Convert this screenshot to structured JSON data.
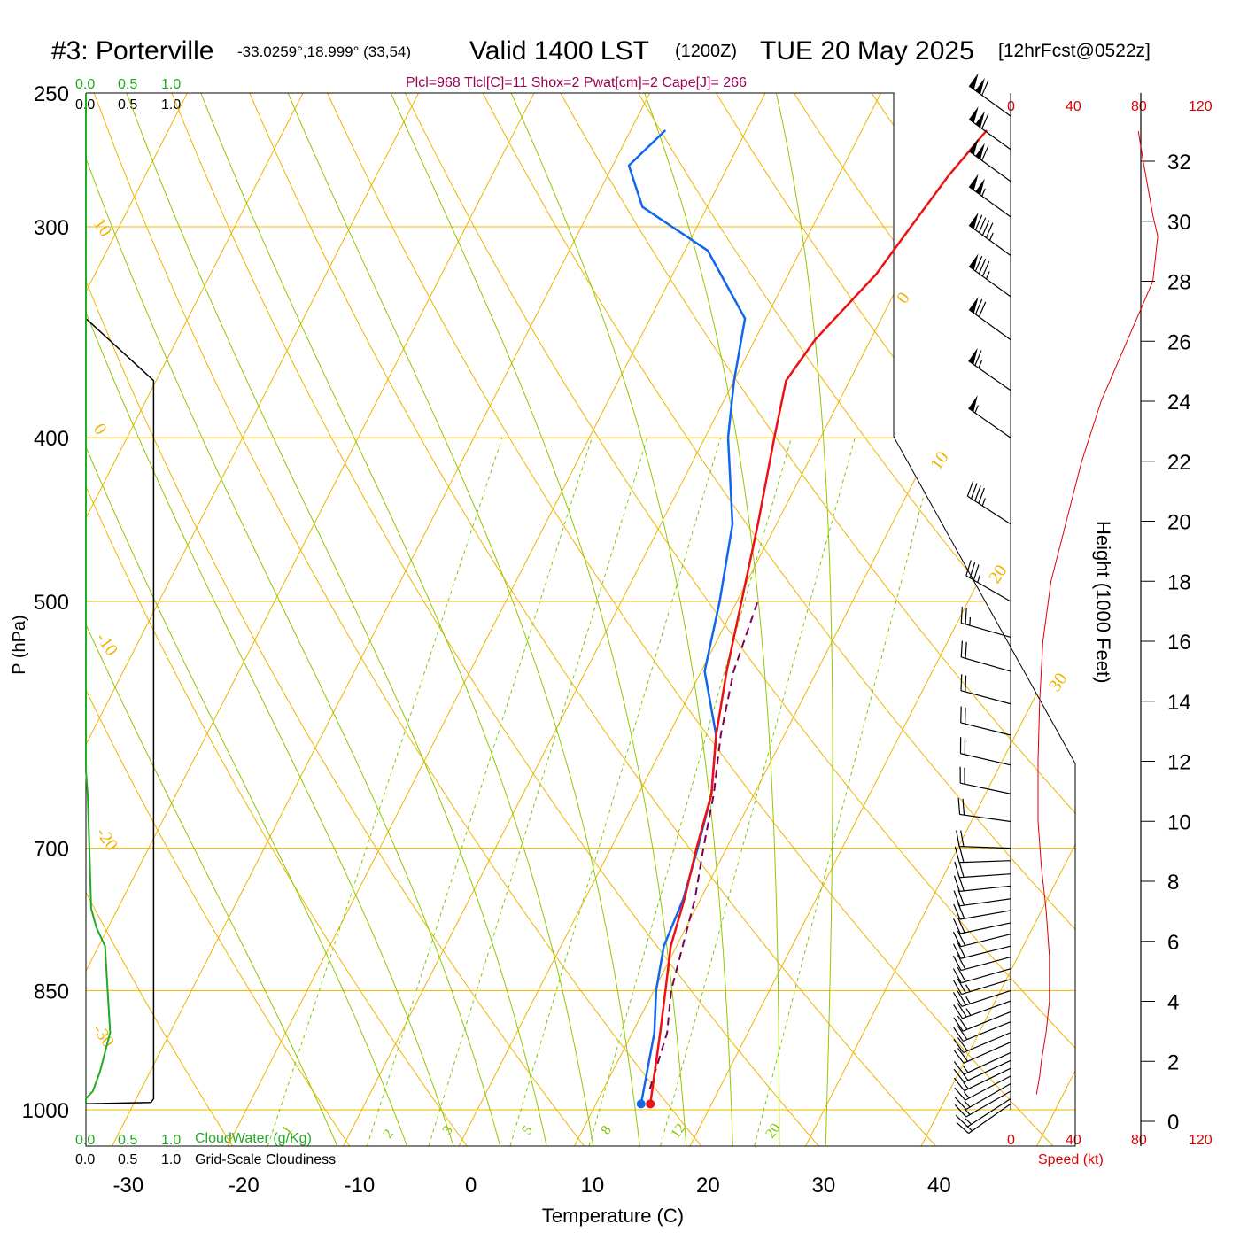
{
  "header": {
    "station": "#3: Porterville",
    "coords": "-33.0259°,18.999° (33,54)",
    "valid": "Valid 1400 LST",
    "utc": "(1200Z)",
    "date": "TUE 20 May 2025",
    "forecast": "[12hrFcst@0522z]",
    "indices": "Plcl=968 Tlcl[C]=11 Shox=2 Pwat[cm]=2 Cape[J]= 266"
  },
  "colors": {
    "isotherm": "#f0b400",
    "mixing": "#7ec800",
    "moist_adiabat": "#90c800",
    "temperature": "#ee1111",
    "dewpoint": "#1166ee",
    "parcel": "#7a0050",
    "cloudwater": "#22aa22",
    "speed": "#dd0000",
    "indices": "#990055"
  },
  "cloud_axis": {
    "green_ticks": [
      "0.0",
      "0.5",
      "1.0"
    ],
    "black_ticks": [
      "0.0",
      "0.5",
      "1.0"
    ],
    "cloudwater_label": "CloudWater (g/Kg)",
    "cloudiness_label": "Grid-Scale Cloudiness"
  },
  "speed_axis": {
    "ticks": [
      "0",
      "40",
      "80",
      "120"
    ],
    "label": "Speed (kt)"
  },
  "height_axis": {
    "label": "Height (1000 Feet)"
  },
  "chart_data": {
    "type": "line",
    "title": "#3: Porterville",
    "xlabel": "Temperature (C)",
    "ylabel": "P (hPa)",
    "x_ticks": [
      -30,
      -20,
      -10,
      0,
      10,
      20,
      30,
      40
    ],
    "p_ticks": [
      250,
      300,
      400,
      500,
      700,
      850,
      1000
    ],
    "height_ticks_kft": [
      0,
      2,
      4,
      6,
      8,
      10,
      12,
      14,
      16,
      18,
      20,
      22,
      24,
      26,
      28,
      30,
      32
    ],
    "isotherm_labels": [
      "10",
      "0",
      "-10",
      "-20",
      "-30",
      "0",
      "10",
      "20",
      "30"
    ],
    "mixing_ratio_labels": [
      "1",
      "2",
      "3",
      "5",
      "8",
      "12",
      "20"
    ],
    "series": [
      {
        "name": "Temperature",
        "points": [
          [
            14.7,
            992
          ],
          [
            12.4,
            900
          ],
          [
            11.0,
            850
          ],
          [
            9.5,
            800
          ],
          [
            8.6,
            750
          ],
          [
            7.4,
            700
          ],
          [
            6.3,
            650
          ],
          [
            4.1,
            600
          ],
          [
            2.2,
            550
          ],
          [
            0.4,
            500
          ],
          [
            -1.6,
            450
          ],
          [
            -4.0,
            400
          ],
          [
            -5.5,
            370
          ],
          [
            -4.8,
            350
          ],
          [
            -2.4,
            320
          ],
          [
            -1.5,
            300
          ],
          [
            -0.5,
            280
          ],
          [
            0.8,
            263
          ]
        ]
      },
      {
        "name": "Dewpoint",
        "points": [
          [
            13.9,
            992
          ],
          [
            11.9,
            900
          ],
          [
            10.2,
            850
          ],
          [
            8.9,
            800
          ],
          [
            8.5,
            750
          ],
          [
            7.5,
            700
          ],
          [
            6.3,
            650
          ],
          [
            4.1,
            600
          ],
          [
            0.3,
            550
          ],
          [
            -1.5,
            500
          ],
          [
            -3.8,
            450
          ],
          [
            -8.0,
            400
          ],
          [
            -10.0,
            370
          ],
          [
            -11.8,
            340
          ],
          [
            -18.0,
            310
          ],
          [
            -25.6,
            292
          ],
          [
            -28.6,
            276
          ],
          [
            -27.0,
            263
          ]
        ]
      },
      {
        "name": "Parcel",
        "points": [
          [
            14.0,
            972
          ],
          [
            13.0,
            900
          ],
          [
            11.5,
            850
          ],
          [
            9.5,
            750
          ],
          [
            8.0,
            700
          ],
          [
            6.5,
            650
          ],
          [
            4.5,
            600
          ],
          [
            2.8,
            550
          ],
          [
            1.8,
            500
          ]
        ]
      }
    ],
    "cloudwater_gkg": [
      [
        0.0,
        992
      ],
      [
        0.0,
        985
      ],
      [
        0.08,
        975
      ],
      [
        0.16,
        950
      ],
      [
        0.28,
        900
      ],
      [
        0.25,
        850
      ],
      [
        0.22,
        800
      ],
      [
        0.12,
        780
      ],
      [
        0.06,
        760
      ],
      [
        0.04,
        700
      ],
      [
        0.02,
        650
      ],
      [
        0.0,
        630
      ]
    ],
    "cloudiness": [
      [
        0.0,
        992
      ],
      [
        0.75,
        990
      ],
      [
        0.78,
        985
      ],
      [
        0.78,
        370
      ],
      [
        0.0,
        340
      ]
    ],
    "speed_profile": [
      [
        16,
        0.9
      ],
      [
        18,
        1.5
      ],
      [
        19,
        2.0
      ],
      [
        22,
        3.0
      ],
      [
        24,
        4.0
      ],
      [
        24,
        5.5
      ],
      [
        22,
        7.0
      ],
      [
        19,
        8.5
      ],
      [
        17,
        10.0
      ],
      [
        17,
        12.0
      ],
      [
        18,
        14.0
      ],
      [
        20,
        16.0
      ],
      [
        25,
        18.0
      ],
      [
        44,
        22.0
      ],
      [
        56,
        24.0
      ],
      [
        72,
        26.0
      ],
      [
        88,
        28.0
      ],
      [
        91,
        29.5
      ],
      [
        88,
        30.2
      ],
      [
        82,
        32.0
      ],
      [
        79,
        33.0
      ]
    ],
    "wind_barbs": [
      {
        "p": 992,
        "dir": 235,
        "spd": 15
      },
      {
        "p": 985,
        "dir": 237,
        "spd": 15
      },
      {
        "p": 975,
        "dir": 240,
        "spd": 15
      },
      {
        "p": 965,
        "dir": 240,
        "spd": 15
      },
      {
        "p": 955,
        "dir": 242,
        "spd": 15
      },
      {
        "p": 945,
        "dir": 244,
        "spd": 15
      },
      {
        "p": 935,
        "dir": 245,
        "spd": 15
      },
      {
        "p": 925,
        "dir": 245,
        "spd": 15
      },
      {
        "p": 912,
        "dir": 246,
        "spd": 20
      },
      {
        "p": 900,
        "dir": 247,
        "spd": 20
      },
      {
        "p": 887,
        "dir": 248,
        "spd": 20
      },
      {
        "p": 875,
        "dir": 248,
        "spd": 20
      },
      {
        "p": 862,
        "dir": 250,
        "spd": 25
      },
      {
        "p": 850,
        "dir": 252,
        "spd": 25
      },
      {
        "p": 837,
        "dir": 253,
        "spd": 25
      },
      {
        "p": 825,
        "dir": 254,
        "spd": 20
      },
      {
        "p": 812,
        "dir": 255,
        "spd": 20
      },
      {
        "p": 800,
        "dir": 256,
        "spd": 20
      },
      {
        "p": 787,
        "dir": 256,
        "spd": 20
      },
      {
        "p": 775,
        "dir": 258,
        "spd": 20
      },
      {
        "p": 762,
        "dir": 260,
        "spd": 20
      },
      {
        "p": 750,
        "dir": 262,
        "spd": 20
      },
      {
        "p": 737,
        "dir": 264,
        "spd": 20
      },
      {
        "p": 725,
        "dir": 266,
        "spd": 20
      },
      {
        "p": 712,
        "dir": 268,
        "spd": 20
      },
      {
        "p": 700,
        "dir": 272,
        "spd": 20
      },
      {
        "p": 675,
        "dir": 278,
        "spd": 20
      },
      {
        "p": 650,
        "dir": 282,
        "spd": 20
      },
      {
        "p": 625,
        "dir": 283,
        "spd": 20
      },
      {
        "p": 600,
        "dir": 284,
        "spd": 20
      },
      {
        "p": 575,
        "dir": 285,
        "spd": 20
      },
      {
        "p": 550,
        "dir": 286,
        "spd": 20
      },
      {
        "p": 525,
        "dir": 286,
        "spd": 25
      },
      {
        "p": 500,
        "dir": 300,
        "spd": 35
      },
      {
        "p": 450,
        "dir": 303,
        "spd": 45
      },
      {
        "p": 400,
        "dir": 305,
        "spd": 55
      },
      {
        "p": 375,
        "dir": 305,
        "spd": 65
      },
      {
        "p": 350,
        "dir": 306,
        "spd": 70
      },
      {
        "p": 330,
        "dir": 306,
        "spd": 85
      },
      {
        "p": 312,
        "dir": 306,
        "spd": 95
      },
      {
        "p": 296,
        "dir": 306,
        "spd": 105
      },
      {
        "p": 282,
        "dir": 306,
        "spd": 110
      },
      {
        "p": 270,
        "dir": 306,
        "spd": 110
      },
      {
        "p": 258,
        "dir": 306,
        "spd": 110
      }
    ]
  }
}
